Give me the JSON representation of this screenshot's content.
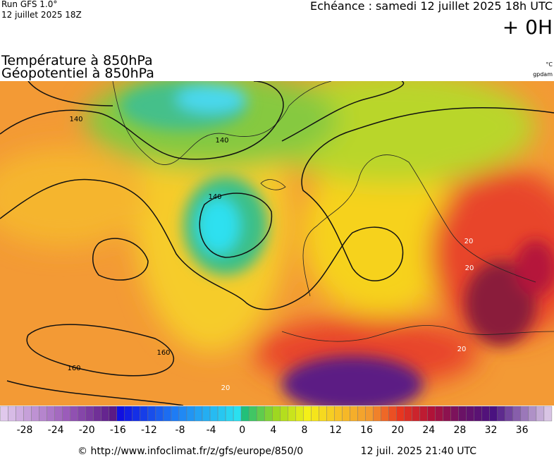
{
  "header": {
    "run": "Run GFS 1.0°",
    "run_date": "12 juillet 2025 18Z",
    "echeance": "Echéance : samedi 12 juillet 2025 18h UTC",
    "offset": "+ 0H",
    "title_line1": "Température à 850hPa",
    "title_line2": "Géopotentiel à 850hPa",
    "unit_temp": "°C",
    "unit_geo": "gpdam"
  },
  "map": {
    "contour_labels": [
      "140",
      "140",
      "140",
      "160",
      "160",
      "20",
      "20",
      "20",
      "20"
    ]
  },
  "colorbar": {
    "labels": [
      "-28",
      "-24",
      "-20",
      "-16",
      "-12",
      "-8",
      "-4",
      "0",
      "4",
      "8",
      "12",
      "16",
      "20",
      "24",
      "28",
      "32",
      "36"
    ]
  },
  "footer": {
    "url": "© http://www.infoclimat.fr/z/gfs/europe/850/0",
    "timestamp": "12 juil. 2025 21:40 UTC"
  }
}
